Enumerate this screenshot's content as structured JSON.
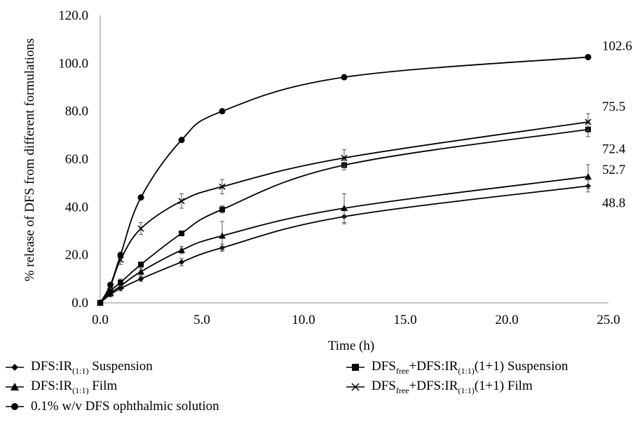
{
  "chart_data": {
    "type": "line",
    "xlabel": "Time (h)",
    "ylabel": "% release of DFS from different formulations",
    "xlim": [
      0,
      25
    ],
    "ylim": [
      0,
      120
    ],
    "x_ticks": [
      "0.0",
      "5.0",
      "10.0",
      "15.0",
      "20.0",
      "25.0"
    ],
    "y_ticks": [
      "0.0",
      "20.0",
      "40.0",
      "60.0",
      "80.0",
      "100.0",
      "120.0"
    ],
    "x": [
      0,
      0.5,
      1,
      2,
      4,
      6,
      12,
      24
    ],
    "grid": false,
    "legend_position": "bottom",
    "series": [
      {
        "key": "s1",
        "marker": "diamond",
        "values": [
          0,
          3.5,
          6,
          10,
          17,
          23,
          36,
          48.8
        ],
        "errors": [
          0,
          1,
          1,
          1,
          1.5,
          1.5,
          3,
          2.5
        ]
      },
      {
        "key": "s2",
        "marker": "triangle",
        "values": [
          0,
          4,
          7,
          13,
          22,
          28,
          39.5,
          52.7
        ],
        "errors": [
          0,
          1,
          1.5,
          1.5,
          1.5,
          6,
          6,
          5
        ]
      },
      {
        "key": "s3",
        "marker": "square",
        "values": [
          0,
          5,
          8.5,
          16,
          29,
          39,
          57.5,
          72.4
        ],
        "errors": [
          0,
          1,
          1.5,
          1,
          1,
          1.5,
          2,
          3
        ]
      },
      {
        "key": "s4",
        "marker": "x",
        "values": [
          0,
          7,
          18,
          31,
          42.5,
          48.5,
          60.5,
          75.5
        ],
        "errors": [
          0,
          1,
          2,
          2.5,
          3,
          3,
          3.5,
          3.5
        ]
      },
      {
        "key": "s5",
        "marker": "circle",
        "values": [
          0,
          7.5,
          20,
          44,
          68,
          80,
          94.2,
          102.6
        ],
        "errors": [
          0,
          0,
          0,
          0,
          0,
          0,
          0,
          0
        ]
      }
    ],
    "end_labels": [
      {
        "series": "s5",
        "text": "102.6"
      },
      {
        "series": "s4",
        "text": "75.5"
      },
      {
        "series": "s3",
        "text": "72.4"
      },
      {
        "series": "s2",
        "text": "52.7"
      },
      {
        "series": "s1",
        "text": "48.8"
      }
    ]
  },
  "legend": {
    "s1": {
      "pre": "DFS:IR",
      "sub": "(1:1)",
      "post": " Suspension"
    },
    "s2": {
      "pre": "DFS:IR",
      "sub": "(1:1)",
      "post": " Film"
    },
    "s3": {
      "pre": "DFS",
      "sub": "free",
      "mid": "+DFS:IR",
      "sub2": "(1:1)",
      "post": "(1+1) Suspension"
    },
    "s4": {
      "pre": "DFS",
      "sub": "free",
      "mid": "+DFS:IR",
      "sub2": "(1:1)",
      "post": "(1+1) Film"
    },
    "s5": {
      "pre": "0.1% w/v DFS ophthalmic solution"
    }
  }
}
